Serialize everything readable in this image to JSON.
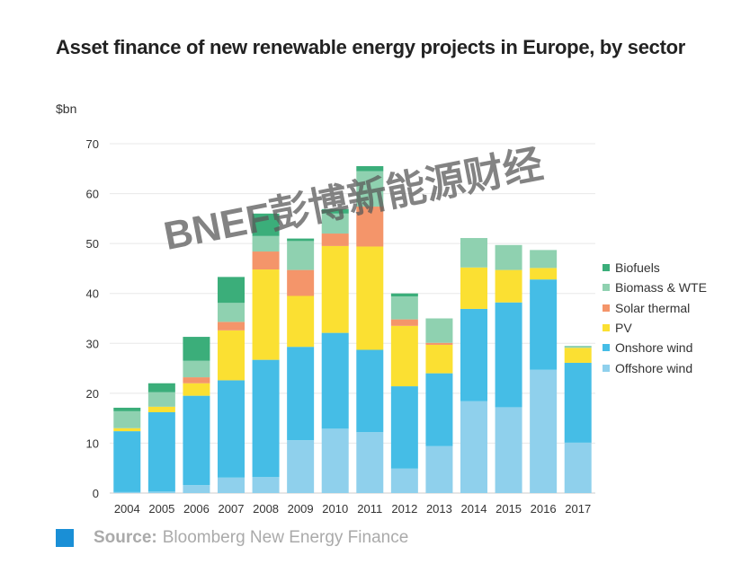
{
  "title": "Asset finance of new renewable energy projects in Europe, by sector",
  "source": {
    "label": "Source:",
    "text": "Bloomberg New Energy Finance",
    "square_color": "#1a8fd6"
  },
  "watermark": "BNEF彭博新能源财经",
  "chart_data": {
    "type": "bar",
    "stacked": true,
    "title": "Asset finance of new renewable energy projects in Europe, by sector",
    "ylabel": "$bn",
    "xlabel": "",
    "ylim": [
      0,
      70
    ],
    "yticks": [
      "0",
      "10",
      "20",
      "30",
      "40",
      "50",
      "60",
      "70"
    ],
    "grid": true,
    "legend_position": "right",
    "categories": [
      "2004",
      "2005",
      "2006",
      "2007",
      "2008",
      "2009",
      "2010",
      "2011",
      "2012",
      "2013",
      "2014",
      "2015",
      "2016",
      "2017"
    ],
    "series": [
      {
        "name": "Offshore wind",
        "color": "#8fd0ec",
        "values": [
          0.2,
          0.3,
          1.6,
          3.1,
          3.2,
          10.6,
          12.9,
          12.2,
          4.9,
          9.4,
          18.4,
          17.2,
          24.7,
          10.1
        ]
      },
      {
        "name": "Onshore wind",
        "color": "#45bde6",
        "values": [
          12.2,
          15.9,
          17.9,
          19.5,
          23.5,
          18.7,
          19.2,
          16.5,
          16.5,
          14.6,
          18.5,
          21.0,
          18.1,
          16.0
        ]
      },
      {
        "name": "PV",
        "color": "#fbe032",
        "values": [
          0.6,
          1.1,
          2.5,
          10.0,
          18.1,
          10.2,
          17.4,
          20.7,
          12.1,
          5.7,
          8.3,
          6.5,
          2.3,
          3.0
        ]
      },
      {
        "name": "Solar thermal",
        "color": "#f4956a",
        "values": [
          0,
          0,
          1.2,
          1.7,
          3.6,
          5.2,
          2.5,
          8.0,
          1.3,
          0.4,
          0,
          0,
          0,
          0
        ]
      },
      {
        "name": "Biomass & WTE",
        "color": "#8fd1b0",
        "values": [
          3.4,
          2.9,
          3.3,
          3.8,
          3.1,
          5.8,
          4.0,
          7.1,
          4.6,
          4.9,
          5.9,
          5.0,
          3.6,
          0.4
        ]
      },
      {
        "name": "Biofuels",
        "color": "#3bae7a",
        "values": [
          0.7,
          1.8,
          4.8,
          5.2,
          4.5,
          0.5,
          0.9,
          1.0,
          0.6,
          0,
          0,
          0,
          0,
          0
        ]
      }
    ]
  }
}
